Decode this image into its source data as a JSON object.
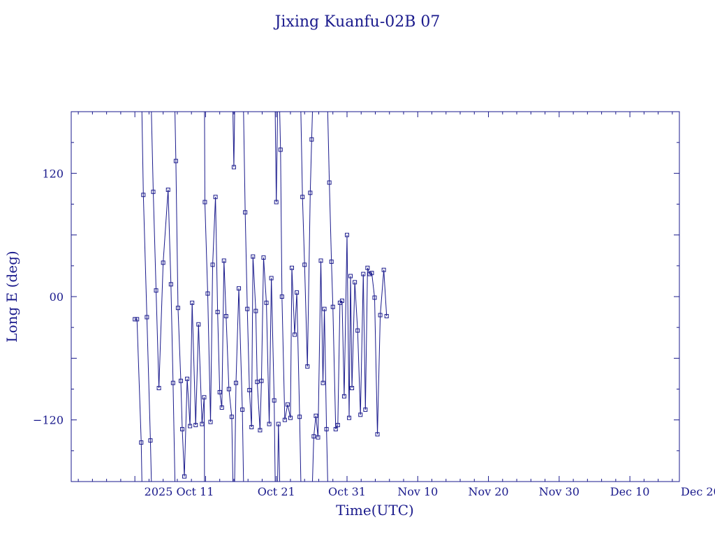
{
  "chart_data": {
    "type": "line",
    "title": "Jixing Kuanfu-02B 07",
    "xlabel": "Time(UTC)",
    "ylabel": "Long E (deg)",
    "x_tick_labels": [
      "2025 Oct 11",
      "Oct 21",
      "Oct 31",
      "Nov 10",
      "Nov 20",
      "Nov 30",
      "Dec 10",
      "Dec 20"
    ],
    "y_ticks": [
      -120,
      0,
      120
    ],
    "y_tick_labels": [
      "−120",
      "00",
      "120"
    ],
    "ylim": [
      -180,
      180
    ],
    "xlim_days_from_oct1": [
      -9,
      77
    ],
    "series": [
      {
        "values": [
          [
            -22,
            0
          ],
          [
            -22,
            0.3
          ],
          [
            -142,
            0.9
          ],
          [
            99,
            1.2
          ],
          [
            -20,
            1.7
          ],
          [
            -140,
            2.2
          ],
          [
            102,
            2.6
          ],
          [
            6,
            3.0
          ],
          [
            -89,
            3.4
          ],
          [
            33,
            4.0
          ],
          [
            104,
            4.7
          ],
          [
            12,
            5.1
          ],
          [
            -84,
            5.4
          ],
          [
            132,
            5.8
          ],
          [
            -11,
            6.1
          ],
          [
            -82,
            6.5
          ],
          [
            -129,
            6.7
          ],
          [
            -175,
            7.0
          ],
          [
            -80,
            7.4
          ],
          [
            -126,
            7.8
          ],
          [
            -6,
            8.1
          ],
          [
            -125,
            8.6
          ],
          [
            -27,
            9.0
          ],
          [
            -124,
            9.5
          ],
          [
            -98,
            9.8
          ],
          [
            92,
            9.9
          ],
          [
            3,
            10.3
          ],
          [
            -122,
            10.7
          ],
          [
            31,
            11.0
          ],
          [
            97,
            11.4
          ],
          [
            -15,
            11.7
          ],
          [
            -93,
            12.0
          ],
          [
            -108,
            12.3
          ],
          [
            35,
            12.6
          ],
          [
            -19,
            12.9
          ],
          [
            -90,
            13.3
          ],
          [
            -117,
            13.7
          ],
          [
            126,
            14.0
          ],
          [
            -84,
            14.3
          ],
          [
            8,
            14.7
          ],
          [
            -110,
            15.2
          ],
          [
            82,
            15.6
          ],
          [
            -12,
            15.9
          ],
          [
            -91,
            16.2
          ],
          [
            -127,
            16.5
          ],
          [
            39,
            16.7
          ],
          [
            -14,
            17.1
          ],
          [
            -83,
            17.3
          ],
          [
            -130,
            17.7
          ],
          [
            -82,
            17.9
          ],
          [
            38,
            18.2
          ],
          [
            -6,
            18.6
          ],
          [
            -124,
            19.0
          ],
          [
            18,
            19.3
          ],
          [
            -101,
            19.7
          ],
          [
            92,
            20.0
          ],
          [
            -124,
            20.3
          ],
          [
            143,
            20.6
          ],
          [
            0,
            20.8
          ],
          [
            -120,
            21.2
          ],
          [
            -105,
            21.6
          ],
          [
            -118,
            22.0
          ],
          [
            28,
            22.2
          ],
          [
            -37,
            22.6
          ],
          [
            4,
            22.9
          ],
          [
            -117,
            23.3
          ],
          [
            97,
            23.7
          ],
          [
            31,
            24.0
          ],
          [
            -68,
            24.4
          ],
          [
            101,
            24.8
          ],
          [
            153,
            25.0
          ],
          [
            -136,
            25.3
          ],
          [
            -116,
            25.6
          ],
          [
            -137,
            25.9
          ],
          [
            35,
            26.3
          ],
          [
            -84,
            26.6
          ],
          [
            -12,
            26.8
          ],
          [
            -129,
            27.1
          ],
          [
            111,
            27.5
          ],
          [
            34,
            27.8
          ],
          [
            -10,
            28.0
          ],
          [
            -129,
            28.4
          ],
          [
            -125,
            28.7
          ],
          [
            -6,
            29.0
          ],
          [
            -4,
            29.3
          ],
          [
            -97,
            29.6
          ],
          [
            60,
            30.0
          ],
          [
            -118,
            30.3
          ],
          [
            20,
            30.5
          ],
          [
            -89,
            30.7
          ],
          [
            14,
            31.1
          ],
          [
            -33,
            31.5
          ],
          [
            -115,
            31.9
          ],
          [
            22,
            32.3
          ],
          [
            -110,
            32.6
          ],
          [
            28,
            32.9
          ],
          [
            22,
            33.2
          ],
          [
            23,
            33.5
          ],
          [
            -1,
            33.9
          ],
          [
            -134,
            34.3
          ],
          [
            -18,
            34.7
          ],
          [
            26,
            35.2
          ],
          [
            -19,
            35.6
          ]
        ]
      }
    ]
  }
}
